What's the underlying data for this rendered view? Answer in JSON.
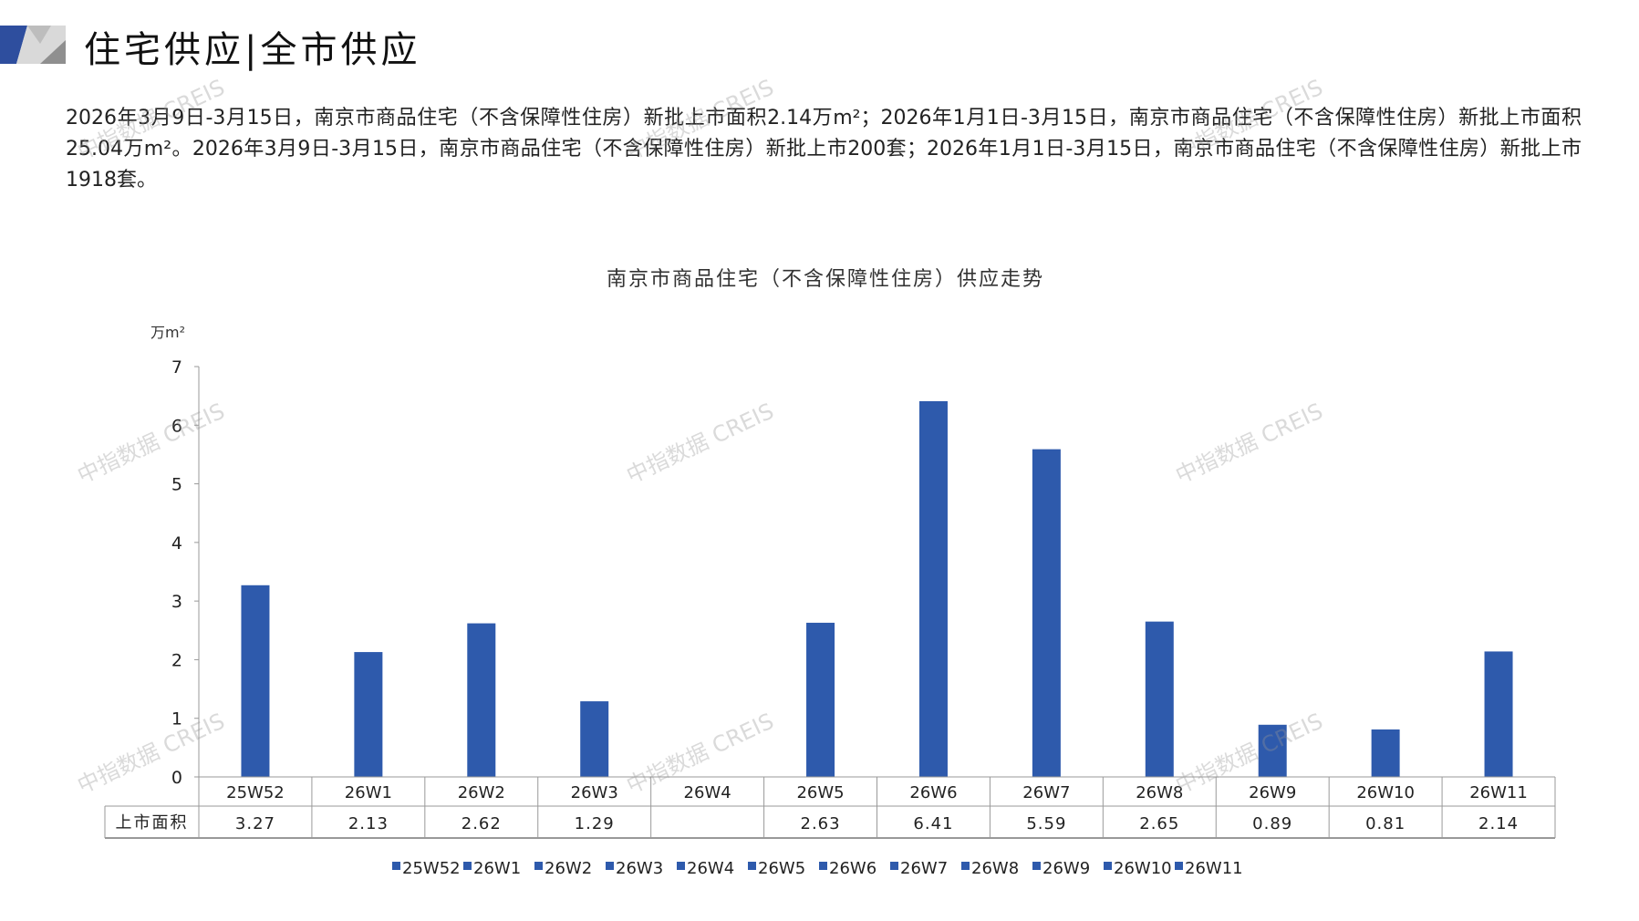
{
  "header": {
    "title": "住宅供应|全市供应"
  },
  "summary": "2026年3月9日-3月15日，南京市商品住宅（不含保障性住房）新批上市面积2.14万m²；2026年1月1日-3月15日，南京市商品住宅（不含保障性住房）新批上市面积25.04万m²。2026年3月9日-3月15日，南京市商品住宅（不含保障性住房）新批上市200套；2026年1月1日-3月15日，南京市商品住宅（不含保障性住房）新批上市1918套。",
  "watermark": "中指数据 CREIS",
  "colors": {
    "bar": "#2E5AAC",
    "logo_blue": "#2E4E9E",
    "logo_gray": "#9E9E9E"
  },
  "chart_data": {
    "type": "bar",
    "title": "南京市商品住宅（不含保障性住房）供应走势",
    "ylabel": "万m²",
    "ylim": [
      0,
      7
    ],
    "yticks": [
      "0",
      "1",
      "2",
      "3",
      "4",
      "5",
      "6",
      "7"
    ],
    "categories": [
      "25W52",
      "26W1",
      "26W2",
      "26W3",
      "26W4",
      "26W5",
      "26W6",
      "26W7",
      "26W8",
      "26W9",
      "26W10",
      "26W11"
    ],
    "series": [
      {
        "name": "上市面积",
        "values": [
          3.27,
          2.13,
          2.62,
          1.29,
          null,
          2.63,
          6.41,
          5.59,
          2.65,
          0.89,
          0.81,
          2.14
        ]
      }
    ],
    "table_labels": [
      "3.27",
      "2.13",
      "2.62",
      "1.29",
      "",
      "2.63",
      "6.41",
      "5.59",
      "2.65",
      "0.89",
      "0.81",
      "2.14"
    ],
    "legend": [
      "25W52",
      "26W1",
      "26W2",
      "26W3",
      "26W4",
      "26W5",
      "26W6",
      "26W7",
      "26W8",
      "26W9",
      "26W10",
      "26W11"
    ],
    "legend_position": "bottom",
    "grid": false
  }
}
